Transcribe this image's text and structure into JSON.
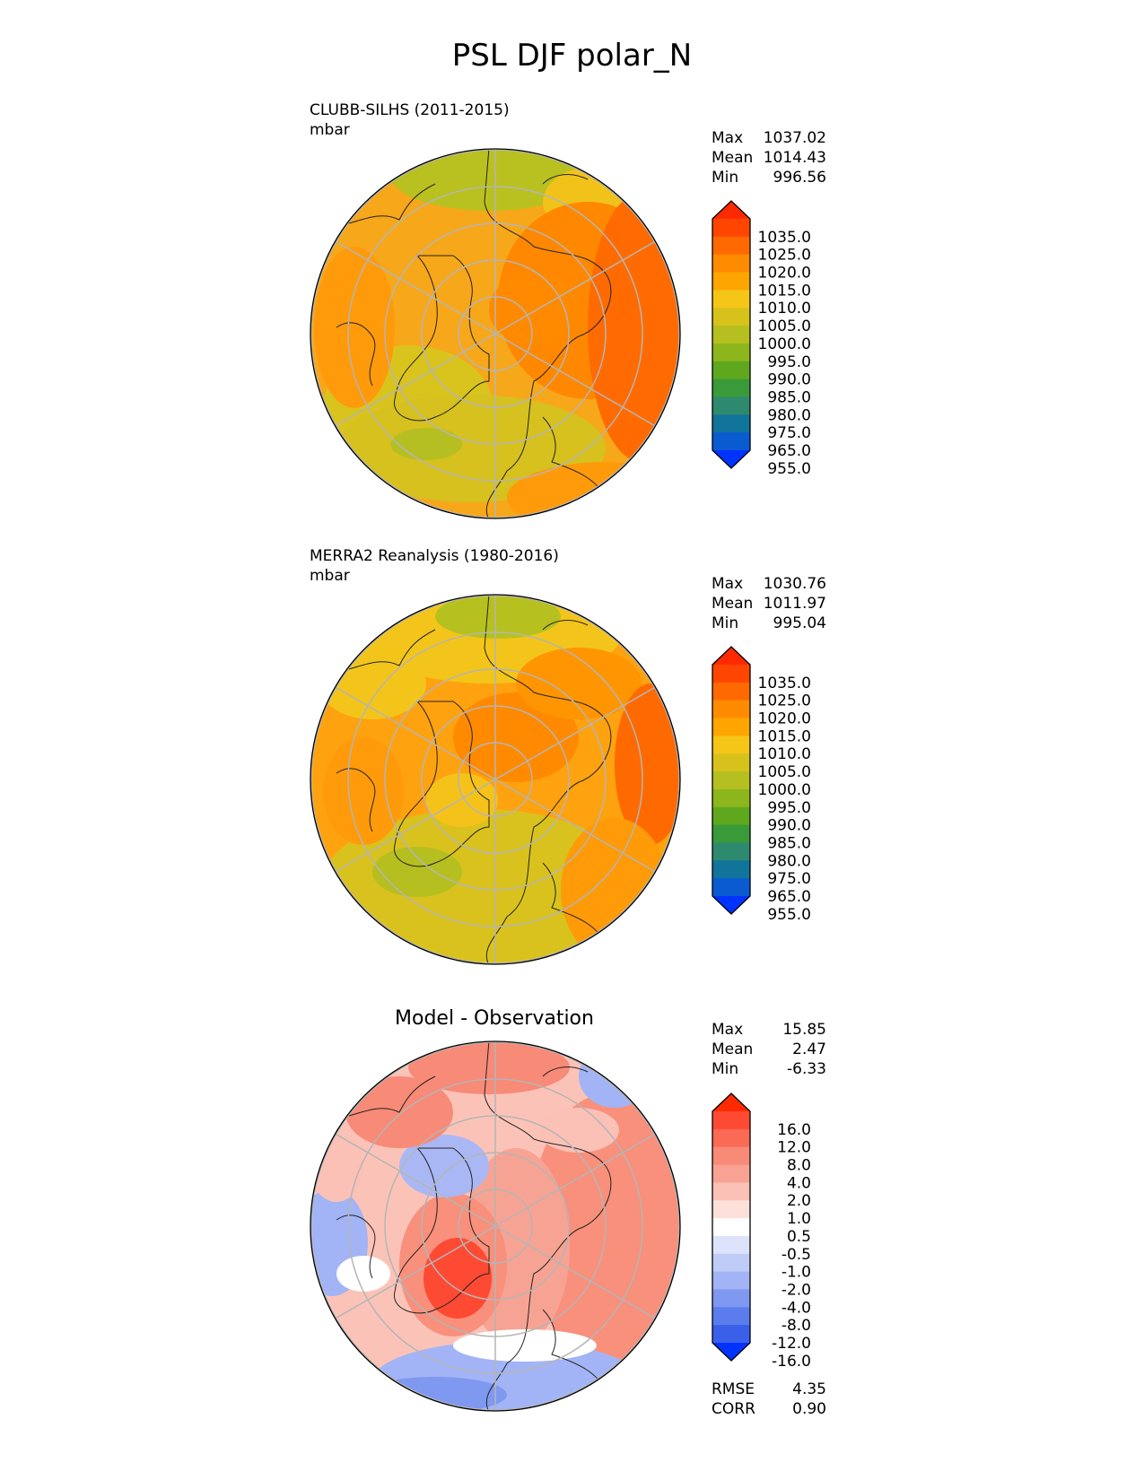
{
  "figure_title": "PSL DJF polar_N",
  "chart_data": [
    {
      "type": "heatmap",
      "projection": "north-polar-stereographic",
      "title": "CLUBB-SILHS (2011-2015)",
      "units": "mbar",
      "stats": {
        "max": "1037.02",
        "mean": "1014.43",
        "min": "996.56"
      },
      "stat_labels": {
        "max": "Max",
        "mean": "Mean",
        "min": "Min"
      },
      "colorbar_ticks": [
        "1035.0",
        "1025.0",
        "1020.0",
        "1015.0",
        "1010.0",
        "1005.0",
        "1000.0",
        "995.0",
        "990.0",
        "985.0",
        "980.0",
        "975.0",
        "965.0",
        "955.0"
      ],
      "colorbar_colors": [
        "#ff2a00",
        "#ff4500",
        "#ff6a00",
        "#ff8c00",
        "#ffa500",
        "#f5c518",
        "#d7c21c",
        "#b5c020",
        "#8db61c",
        "#5fa81e",
        "#3a9a3a",
        "#2e8a6e",
        "#11749a",
        "#0a5ad0",
        "#0033ff"
      ]
    },
    {
      "type": "heatmap",
      "projection": "north-polar-stereographic",
      "title": "MERRA2 Reanalysis (1980-2016)",
      "units": "mbar",
      "stats": {
        "max": "1030.76",
        "mean": "1011.97",
        "min": "995.04"
      },
      "stat_labels": {
        "max": "Max",
        "mean": "Mean",
        "min": "Min"
      },
      "colorbar_ticks": [
        "1035.0",
        "1025.0",
        "1020.0",
        "1015.0",
        "1010.0",
        "1005.0",
        "1000.0",
        "995.0",
        "990.0",
        "985.0",
        "980.0",
        "975.0",
        "965.0",
        "955.0"
      ],
      "colorbar_colors": [
        "#ff2a00",
        "#ff4500",
        "#ff6a00",
        "#ff8c00",
        "#ffa500",
        "#f5c518",
        "#d7c21c",
        "#b5c020",
        "#8db61c",
        "#5fa81e",
        "#3a9a3a",
        "#2e8a6e",
        "#11749a",
        "#0a5ad0",
        "#0033ff"
      ]
    },
    {
      "type": "heatmap",
      "projection": "north-polar-stereographic",
      "title": "Model - Observation",
      "stats": {
        "max": "15.85",
        "mean": "2.47",
        "min": "-6.33"
      },
      "stat_labels": {
        "max": "Max",
        "mean": "Mean",
        "min": "Min"
      },
      "colorbar_ticks": [
        "16.0",
        "12.0",
        "8.0",
        "4.0",
        "2.0",
        "1.0",
        "0.5",
        "-0.5",
        "-1.0",
        "-2.0",
        "-4.0",
        "-8.0",
        "-12.0",
        "-16.0"
      ],
      "colorbar_colors": [
        "#ff2a00",
        "#ff4a33",
        "#fb6a55",
        "#f88a78",
        "#f8a294",
        "#fbc0b6",
        "#fde0da",
        "#ffffff",
        "#dde3fb",
        "#c0ccf8",
        "#a2b4f5",
        "#7f98f0",
        "#5b7cec",
        "#3a60ea",
        "#0033ff"
      ],
      "rmse_label": "RMSE",
      "rmse": "4.35",
      "corr_label": "CORR",
      "corr": "0.90"
    }
  ]
}
